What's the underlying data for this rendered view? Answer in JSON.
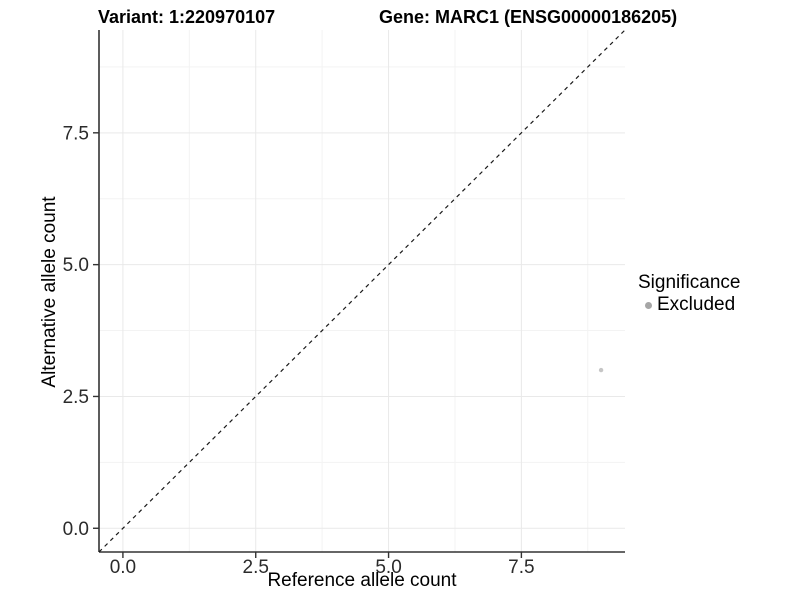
{
  "chart_data": {
    "type": "scatter",
    "titles": {
      "variant": "Variant: 1:220970107",
      "gene": "Gene: MARC1 (ENSG00000186205)"
    },
    "xlabel": "Reference allele count",
    "ylabel": "Alternative allele count",
    "xlim": [
      -0.45,
      9.45
    ],
    "ylim": [
      -0.45,
      9.45
    ],
    "x_ticks": {
      "values": [
        0,
        2.5,
        5,
        7.5
      ],
      "labels": [
        "0.0",
        "2.5",
        "5.0",
        "7.5"
      ]
    },
    "y_ticks": {
      "values": [
        0,
        2.5,
        5,
        7.5
      ],
      "labels": [
        "0.0",
        "2.5",
        "5.0",
        "7.5"
      ]
    },
    "grid": {
      "major": true,
      "minor": true
    },
    "reference_line": {
      "type": "identity",
      "slope": 1,
      "intercept": 0,
      "style": "dashed",
      "color": "#1a1a1a"
    },
    "series": [
      {
        "name": "Excluded",
        "color": "#c6c6c6",
        "point_radius": 2.2,
        "points": [
          {
            "x": 9,
            "y": 3
          }
        ]
      }
    ],
    "legend": {
      "title": "Significance",
      "position": "right",
      "items": [
        {
          "label": "Excluded",
          "color": "#a6a6a6"
        }
      ]
    },
    "colors": {
      "grid_major": "#e9e9e9",
      "grid_minor": "#f3f3f3",
      "axis_line": "#333333",
      "tick_mark": "#333333",
      "tick_text": "#2b2b2b"
    }
  }
}
